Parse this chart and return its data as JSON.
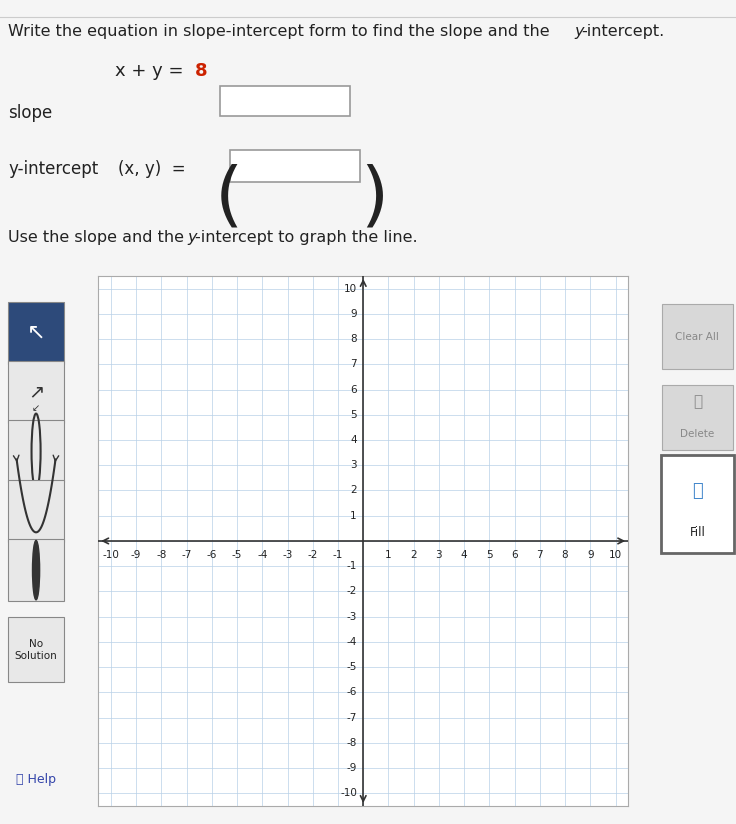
{
  "page_bg": "#f5f5f5",
  "white": "#ffffff",
  "equation_color": "#cc2200",
  "grid_color": "#b8d0e8",
  "axis_color": "#333333",
  "panel_bg": "#d0d0d0",
  "panel_bg2": "#c8c8c8",
  "btn_blue_bg": "#2d4a7a",
  "btn_gray_bg": "#e8e8e8",
  "btn_border": "#aaaaaa",
  "fill_btn_border": "#999999",
  "text_dark": "#222222",
  "text_blue": "#3344aa",
  "top_text": "Write the equation in slope-intercept form to find the slope and the y-intercept.",
  "equation_part1": "x + y = ",
  "equation_part2": "8",
  "slope_label": "slope",
  "yint_label": "y-intercept",
  "xy_label": "(x, y)  =",
  "instruction": "Use the slope and the y-intercept to graph the the line.",
  "help_label": "Help",
  "no_sol_label": "No\nSolution",
  "clear_label": "Clear All",
  "delete_label": "Delete",
  "fill_label": "Fill",
  "axis_min": -10,
  "axis_max": 10
}
